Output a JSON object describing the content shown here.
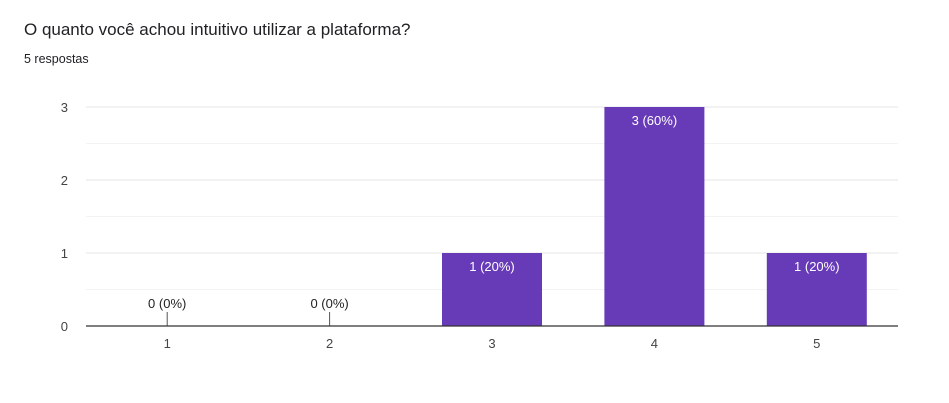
{
  "header": {
    "title": "O quanto você achou intuitivo utilizar a plataforma?",
    "responses": "5 respostas"
  },
  "colors": {
    "bar": "#673ab7",
    "grid": "#eeeeee",
    "axis": "#333333"
  },
  "chart_data": {
    "type": "bar",
    "title": "O quanto você achou intuitivo utilizar a plataforma?",
    "subtitle": "5 respostas",
    "xlabel": "",
    "ylabel": "",
    "categories": [
      "1",
      "2",
      "3",
      "4",
      "5"
    ],
    "values": [
      0,
      0,
      1,
      3,
      1
    ],
    "data_labels": [
      "0 (0%)",
      "0 (0%)",
      "1 (20%)",
      "3 (60%)",
      "1 (20%)"
    ],
    "yticks": [
      0,
      1,
      2,
      3
    ],
    "ylim": [
      0,
      3
    ],
    "grid": true,
    "legend": "none"
  }
}
